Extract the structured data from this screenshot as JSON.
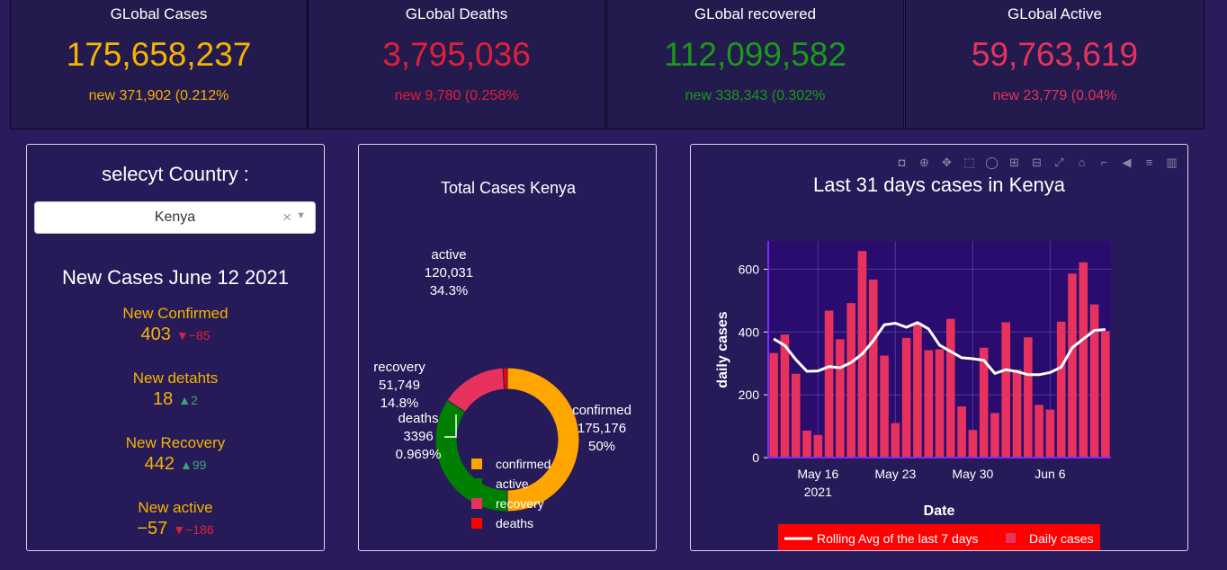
{
  "kpis": [
    {
      "title": "GLobal Cases",
      "value": "175,658,237",
      "new": "new 371,902 (0.212%",
      "color": "#f5b400"
    },
    {
      "title": "GLobal Deaths",
      "value": "3,795,036",
      "new": "new 9,780 (0.258%",
      "color": "#e0203a"
    },
    {
      "title": "GLobal recovered",
      "value": "112,099,582",
      "new": "new 338,343 (0.302%",
      "color": "#1a9a1a"
    },
    {
      "title": "GLobal Active",
      "value": "59,763,619",
      "new": "new 23,779 (0.04%",
      "color": "#e8325e"
    }
  ],
  "selector": {
    "title": "selecyt Country :",
    "selected": "Kenya",
    "clear_glyph": "×",
    "arrow_glyph": "▼"
  },
  "new_cases": {
    "title": "New Cases June 12 2021",
    "items": [
      {
        "label": "New Confirmed",
        "value": "403",
        "delta": "▼−85",
        "dir": "down"
      },
      {
        "label": "New detahts",
        "value": "18",
        "delta": "▲2",
        "dir": "up"
      },
      {
        "label": "New Recovery",
        "value": "442",
        "delta": "▲99",
        "dir": "up"
      },
      {
        "label": "New active",
        "value": "−57",
        "delta": "▼−186",
        "dir": "down"
      }
    ]
  },
  "toolbar": {
    "icons": [
      "camera-icon",
      "zoom-icon",
      "pan-icon",
      "box-select-icon",
      "lasso-icon",
      "zoom-in-icon",
      "zoom-out-icon",
      "autoscale-icon",
      "home-icon",
      "spike-lines-icon",
      "hover-closest-icon",
      "hover-compare-icon",
      "plotly-logo-icon"
    ],
    "glyphs": [
      "◘",
      "⊕",
      "✥",
      "⬚",
      "◯",
      "⊞",
      "⊟",
      "⤢",
      "⌂",
      "⌐",
      "◀",
      "≡",
      "▥"
    ]
  },
  "chart_data": [
    {
      "type": "pie",
      "title": "Total Cases  Kenya",
      "hole": 0.6,
      "labels": [
        "confirmed",
        "active",
        "recovery",
        "deaths"
      ],
      "values": [
        175176,
        120031,
        51749,
        3396
      ],
      "value_labels": [
        "175,176",
        "120,031",
        "51,749",
        "3396"
      ],
      "percent_labels": [
        "50%",
        "34.3%",
        "14.8%",
        "0.969%"
      ],
      "colors": [
        "#ffa500",
        "#008000",
        "#e8325e",
        "#ff0000"
      ],
      "legend": "bottom"
    },
    {
      "type": "bar",
      "title": "Last 31 days cases in   Kenya",
      "xlabel": "Date",
      "ylabel": "daily cases",
      "ylim": [
        0,
        690
      ],
      "yticks": [
        0,
        200,
        400,
        600
      ],
      "xticks": [
        {
          "label": "May 16",
          "sub": "2021",
          "index": 4
        },
        {
          "label": "May 23",
          "index": 11
        },
        {
          "label": "May 30",
          "index": 18
        },
        {
          "label": "Jun 6",
          "index": 25
        }
      ],
      "grid": true,
      "legend": "bottom",
      "series": [
        {
          "name": "Daily cases",
          "kind": "bar",
          "color": "#e8325e",
          "values": [
            333,
            392,
            267,
            86,
            72,
            468,
            377,
            492,
            658,
            567,
            325,
            110,
            381,
            430,
            342,
            345,
            442,
            163,
            88,
            350,
            142,
            431,
            280,
            383,
            168,
            153,
            433,
            586,
            622,
            488,
            403
          ]
        },
        {
          "name": "Rolling Avg of the last 7 days",
          "kind": "line",
          "color": "#ffffff",
          "values": [
            378,
            357,
            312,
            275,
            276,
            290,
            286,
            303,
            330,
            372,
            423,
            428,
            415,
            430,
            410,
            358,
            338,
            318,
            315,
            310,
            268,
            280,
            274,
            264,
            264,
            271,
            288,
            350,
            378,
            405,
            408
          ]
        }
      ]
    }
  ]
}
